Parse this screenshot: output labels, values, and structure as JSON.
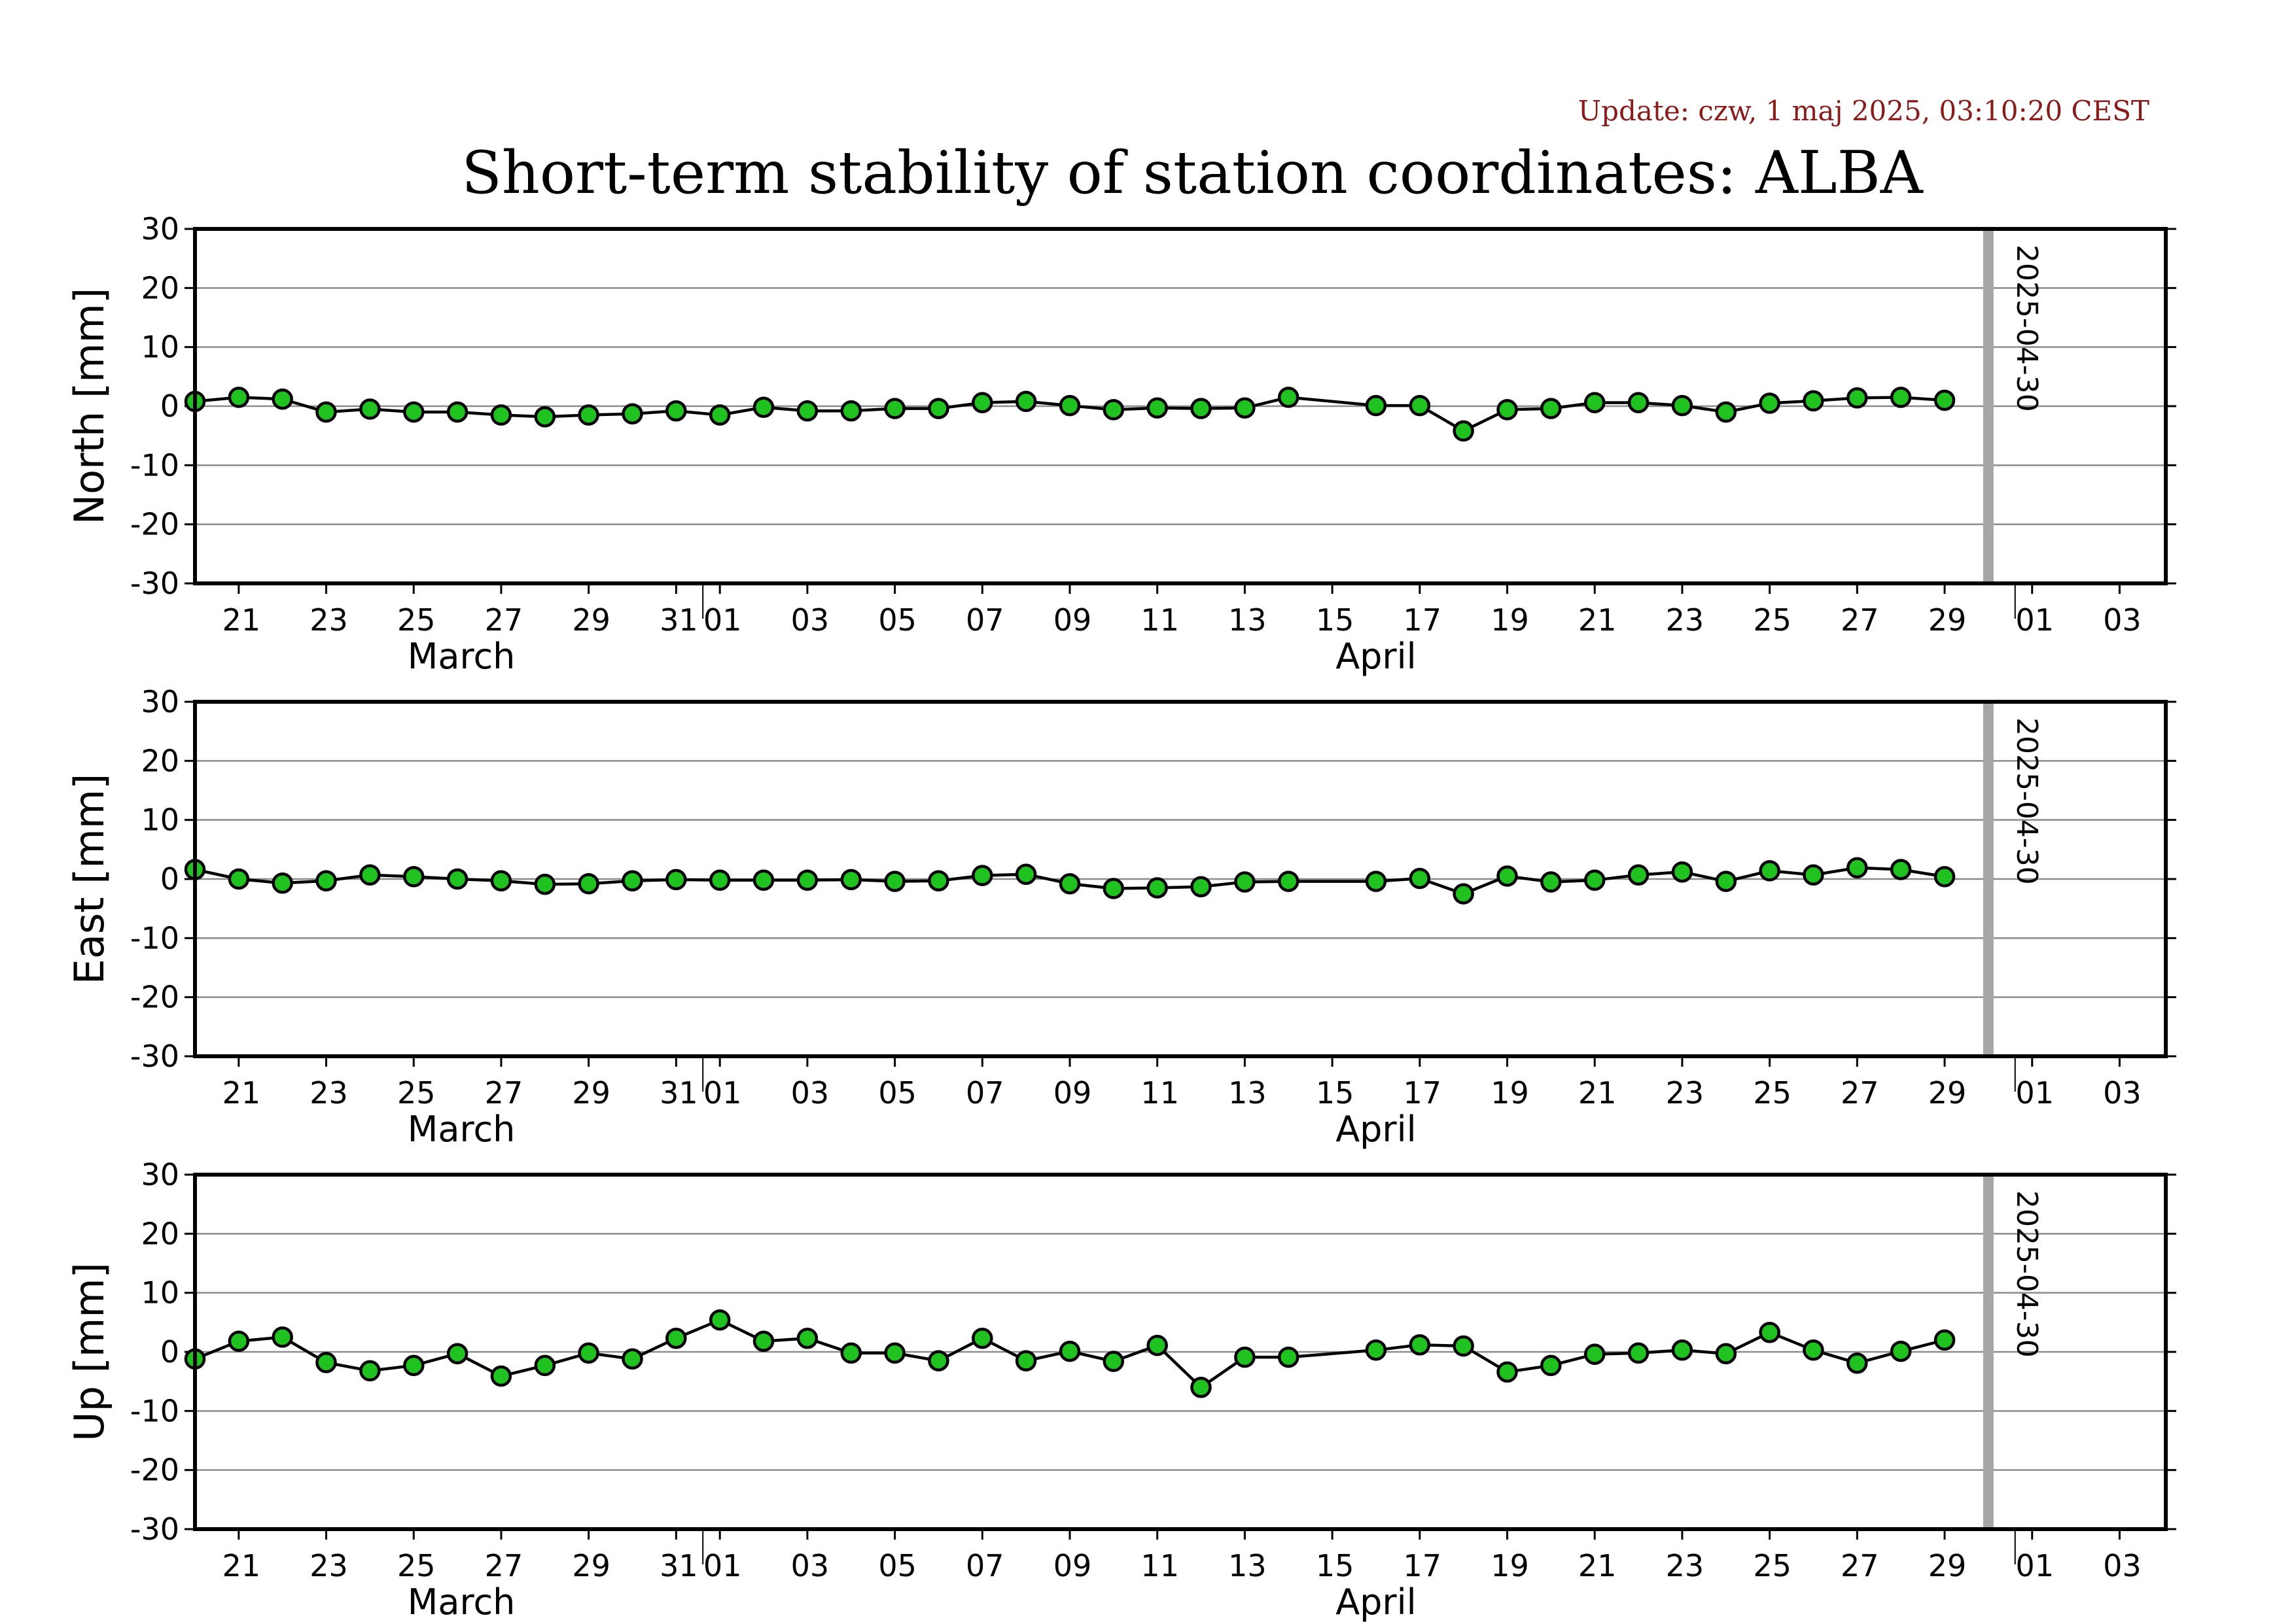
{
  "update_text": "Update: czw, 1 maj 2025, 03:10:20 CEST",
  "title": "Short-term stability of station coordinates: ALBA",
  "chart_data": [
    {
      "type": "line",
      "ylabel": "North [mm]",
      "ylim": [
        -30,
        30
      ],
      "yticks": [
        30,
        20,
        10,
        0,
        -10,
        -20,
        -30
      ],
      "xlim": [
        "2025-03-20",
        "2025-05-04"
      ],
      "x_tick_labels": [
        "21",
        "23",
        "25",
        "27",
        "29",
        "31",
        "01",
        "03",
        "05",
        "07",
        "09",
        "11",
        "13",
        "15",
        "17",
        "19",
        "21",
        "23",
        "25",
        "27",
        "29",
        "01",
        "03"
      ],
      "month_labels": [
        "March",
        "April"
      ],
      "marker_date": "2025-04-30",
      "grid": "horizontal",
      "series": [
        {
          "x": [
            "2025-03-20",
            "2025-03-21",
            "2025-03-22",
            "2025-03-23",
            "2025-03-24",
            "2025-03-25",
            "2025-03-26",
            "2025-03-27",
            "2025-03-28",
            "2025-03-29",
            "2025-03-30",
            "2025-03-31",
            "2025-04-01",
            "2025-04-02",
            "2025-04-03",
            "2025-04-04",
            "2025-04-05",
            "2025-04-06",
            "2025-04-07",
            "2025-04-08",
            "2025-04-09",
            "2025-04-10",
            "2025-04-11",
            "2025-04-12",
            "2025-04-13",
            "2025-04-14",
            "2025-04-16",
            "2025-04-17",
            "2025-04-18",
            "2025-04-19",
            "2025-04-20",
            "2025-04-21",
            "2025-04-22",
            "2025-04-23",
            "2025-04-24",
            "2025-04-25",
            "2025-04-26",
            "2025-04-27",
            "2025-04-28",
            "2025-04-29"
          ],
          "values": [
            0.8,
            1.5,
            1.2,
            -1.0,
            -0.5,
            -1.0,
            -1.0,
            -1.5,
            -1.8,
            -1.5,
            -1.3,
            -0.8,
            -1.5,
            -0.2,
            -0.8,
            -0.8,
            -0.4,
            -0.4,
            0.6,
            0.8,
            0.1,
            -0.6,
            -0.3,
            -0.4,
            -0.3,
            1.5,
            0.1,
            0.1,
            -4.2,
            -0.6,
            -0.4,
            0.6,
            0.6,
            0.1,
            -1.0,
            0.5,
            0.9,
            1.4,
            1.5,
            1.0
          ]
        }
      ]
    },
    {
      "type": "line",
      "ylabel": "East [mm]",
      "ylim": [
        -30,
        30
      ],
      "yticks": [
        30,
        20,
        10,
        0,
        -10,
        -20,
        -30
      ],
      "xlim": [
        "2025-03-20",
        "2025-05-04"
      ],
      "x_tick_labels": [
        "21",
        "23",
        "25",
        "27",
        "29",
        "31",
        "01",
        "03",
        "05",
        "07",
        "09",
        "11",
        "13",
        "15",
        "17",
        "19",
        "21",
        "23",
        "25",
        "27",
        "29",
        "01",
        "03"
      ],
      "month_labels": [
        "March",
        "April"
      ],
      "marker_date": "2025-04-30",
      "grid": "horizontal",
      "series": [
        {
          "x": [
            "2025-03-20",
            "2025-03-21",
            "2025-03-22",
            "2025-03-23",
            "2025-03-24",
            "2025-03-25",
            "2025-03-26",
            "2025-03-27",
            "2025-03-28",
            "2025-03-29",
            "2025-03-30",
            "2025-03-31",
            "2025-04-01",
            "2025-04-02",
            "2025-04-03",
            "2025-04-04",
            "2025-04-05",
            "2025-04-06",
            "2025-04-07",
            "2025-04-08",
            "2025-04-09",
            "2025-04-10",
            "2025-04-11",
            "2025-04-12",
            "2025-04-13",
            "2025-04-14",
            "2025-04-16",
            "2025-04-17",
            "2025-04-18",
            "2025-04-19",
            "2025-04-20",
            "2025-04-21",
            "2025-04-22",
            "2025-04-23",
            "2025-04-24",
            "2025-04-25",
            "2025-04-26",
            "2025-04-27",
            "2025-04-28",
            "2025-04-29"
          ],
          "values": [
            1.6,
            0.0,
            -0.7,
            -0.3,
            0.7,
            0.4,
            0.0,
            -0.3,
            -0.9,
            -0.8,
            -0.3,
            -0.1,
            -0.2,
            -0.2,
            -0.2,
            -0.1,
            -0.4,
            -0.3,
            0.6,
            0.8,
            -0.8,
            -1.6,
            -1.5,
            -1.3,
            -0.5,
            -0.4,
            -0.4,
            0.1,
            -2.5,
            0.5,
            -0.5,
            -0.2,
            0.7,
            1.2,
            -0.4,
            1.4,
            0.7,
            1.9,
            1.6,
            0.4
          ]
        }
      ]
    },
    {
      "type": "line",
      "ylabel": "Up [mm]",
      "ylim": [
        -30,
        30
      ],
      "yticks": [
        30,
        20,
        10,
        0,
        -10,
        -20,
        -30
      ],
      "xlim": [
        "2025-03-20",
        "2025-05-04"
      ],
      "x_tick_labels": [
        "21",
        "23",
        "25",
        "27",
        "29",
        "31",
        "01",
        "03",
        "05",
        "07",
        "09",
        "11",
        "13",
        "15",
        "17",
        "19",
        "21",
        "23",
        "25",
        "27",
        "29",
        "01",
        "03"
      ],
      "month_labels": [
        "March",
        "April"
      ],
      "marker_date": "2025-04-30",
      "grid": "horizontal",
      "series": [
        {
          "x": [
            "2025-03-20",
            "2025-03-21",
            "2025-03-22",
            "2025-03-23",
            "2025-03-24",
            "2025-03-25",
            "2025-03-26",
            "2025-03-27",
            "2025-03-28",
            "2025-03-29",
            "2025-03-30",
            "2025-03-31",
            "2025-04-01",
            "2025-04-02",
            "2025-04-03",
            "2025-04-04",
            "2025-04-05",
            "2025-04-06",
            "2025-04-07",
            "2025-04-08",
            "2025-04-09",
            "2025-04-10",
            "2025-04-11",
            "2025-04-12",
            "2025-04-13",
            "2025-04-14",
            "2025-04-16",
            "2025-04-17",
            "2025-04-18",
            "2025-04-19",
            "2025-04-20",
            "2025-04-21",
            "2025-04-22",
            "2025-04-23",
            "2025-04-24",
            "2025-04-25",
            "2025-04-26",
            "2025-04-27",
            "2025-04-28",
            "2025-04-29"
          ],
          "values": [
            -1.2,
            1.8,
            2.5,
            -1.8,
            -3.2,
            -2.3,
            -0.3,
            -4.1,
            -2.3,
            -0.2,
            -1.2,
            2.3,
            5.4,
            1.8,
            2.3,
            -0.2,
            -0.2,
            -1.5,
            2.3,
            -1.5,
            0.1,
            -1.6,
            1.1,
            -6.0,
            -0.9,
            -0.9,
            0.3,
            1.2,
            1.0,
            -3.4,
            -2.3,
            -0.4,
            -0.2,
            0.3,
            -0.3,
            3.3,
            0.3,
            -1.9,
            0.1,
            2.0
          ]
        }
      ]
    }
  ],
  "colors": {
    "update_text": "#8b1a1a",
    "marker_fill": "#1fc21f",
    "marker_stroke": "#000000",
    "line": "#000000",
    "grid": "#8c8c8c",
    "date_marker": "#a6a6a6"
  }
}
